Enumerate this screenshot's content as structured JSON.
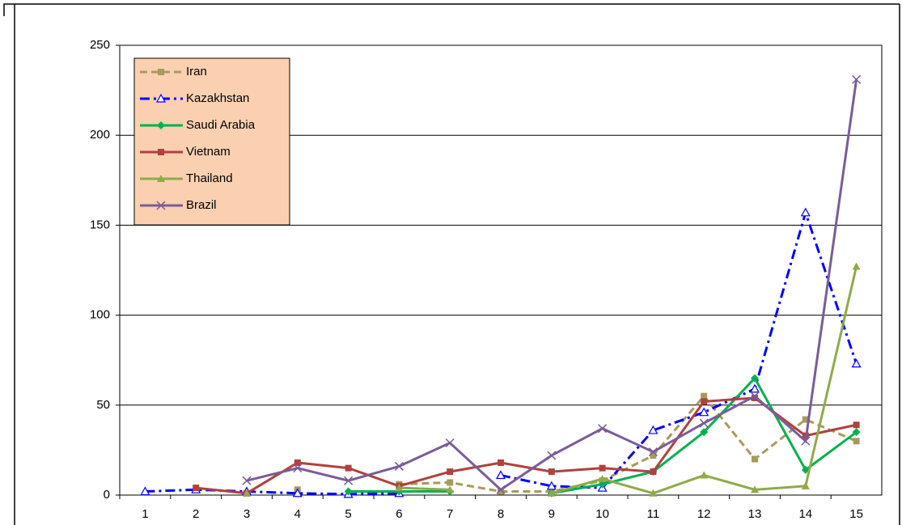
{
  "chart_data": {
    "type": "line",
    "categories": [
      "1",
      "2",
      "3",
      "4",
      "5",
      "6",
      "7",
      "8",
      "9",
      "10",
      "11",
      "12",
      "13",
      "14",
      "15"
    ],
    "ylim": [
      0,
      250
    ],
    "yticks": [
      0,
      50,
      100,
      150,
      200,
      250
    ],
    "grid": true,
    "legend": "top-left",
    "series": [
      {
        "name": "Iran",
        "color": "#a89a5c",
        "dash": "dashed",
        "marker": "square",
        "values": [
          null,
          null,
          null,
          3,
          null,
          6,
          7,
          2,
          2,
          8,
          22,
          55,
          20,
          42,
          30
        ]
      },
      {
        "name": "Kazakhstan",
        "color": "#0000ff",
        "dash": "dashdot",
        "marker": "triangle-open",
        "values": [
          2,
          3,
          2,
          1,
          0.5,
          1,
          null,
          11,
          5,
          4,
          36,
          46,
          59,
          157,
          73
        ]
      },
      {
        "name": "Saudi Arabia",
        "color": "#00b050",
        "dash": "solid",
        "marker": "diamond",
        "values": [
          null,
          null,
          null,
          null,
          2,
          2,
          2,
          null,
          1,
          6,
          13,
          35,
          65,
          14,
          35
        ]
      },
      {
        "name": "Vietnam",
        "color": "#b0413e",
        "dash": "solid",
        "marker": "square",
        "values": [
          null,
          4,
          1,
          18,
          15,
          5,
          13,
          18,
          13,
          15,
          13,
          52,
          54,
          33,
          39
        ]
      },
      {
        "name": "Thailand",
        "color": "#8faa4a",
        "dash": "solid",
        "marker": "triangle",
        "values": [
          null,
          null,
          1,
          null,
          null,
          4,
          3,
          null,
          1,
          9,
          1,
          11,
          3,
          5,
          127
        ]
      },
      {
        "name": "Brazil",
        "color": "#7a5c99",
        "dash": "solid",
        "marker": "x",
        "values": [
          null,
          null,
          8,
          15,
          8,
          16,
          29,
          3,
          22,
          37,
          24,
          40,
          55,
          30,
          231
        ]
      }
    ]
  }
}
